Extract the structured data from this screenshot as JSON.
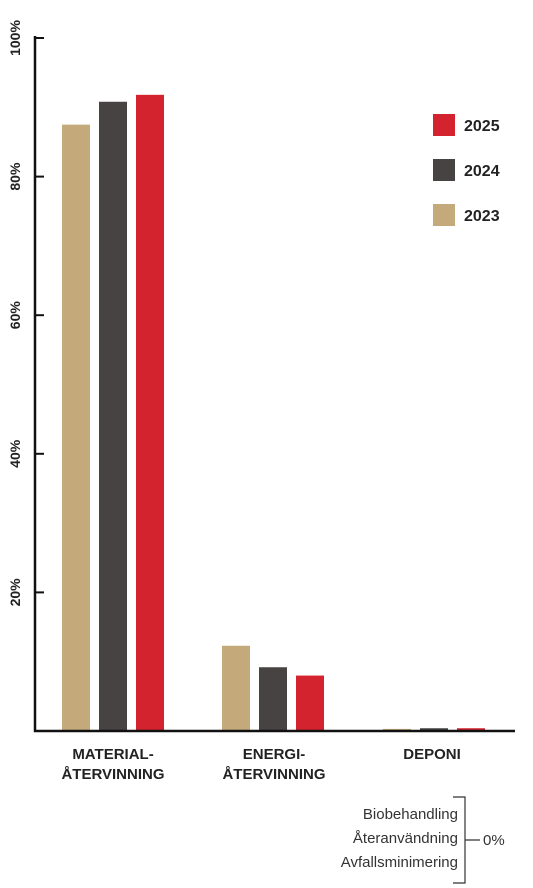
{
  "chart_data": {
    "type": "bar",
    "categories": [
      [
        "MATERIAL-",
        "ÅTERVINNING"
      ],
      [
        "ENERGI-",
        "ÅTERVINNING"
      ],
      [
        "DEPONI"
      ]
    ],
    "series": [
      {
        "name": "2023",
        "color": "#C4AA7A",
        "values": [
          87.5,
          12.3,
          0.3
        ]
      },
      {
        "name": "2024",
        "color": "#474343",
        "values": [
          90.8,
          9.2,
          0.4
        ]
      },
      {
        "name": "2025",
        "color": "#D3232E",
        "values": [
          91.8,
          8.0,
          0.4
        ]
      }
    ],
    "legend_order": [
      "2025",
      "2024",
      "2023"
    ],
    "legend_position": "top-right",
    "yticks": [
      "20%",
      "40%",
      "60%",
      "80%",
      "100%"
    ],
    "ytick_values": [
      20,
      40,
      60,
      80,
      100
    ],
    "ylim": [
      0,
      100
    ],
    "grid": false,
    "zero_categories": [
      "Biobehandling",
      "Återanvändning",
      "Avfallsminimering"
    ],
    "zero_label": "0%"
  }
}
